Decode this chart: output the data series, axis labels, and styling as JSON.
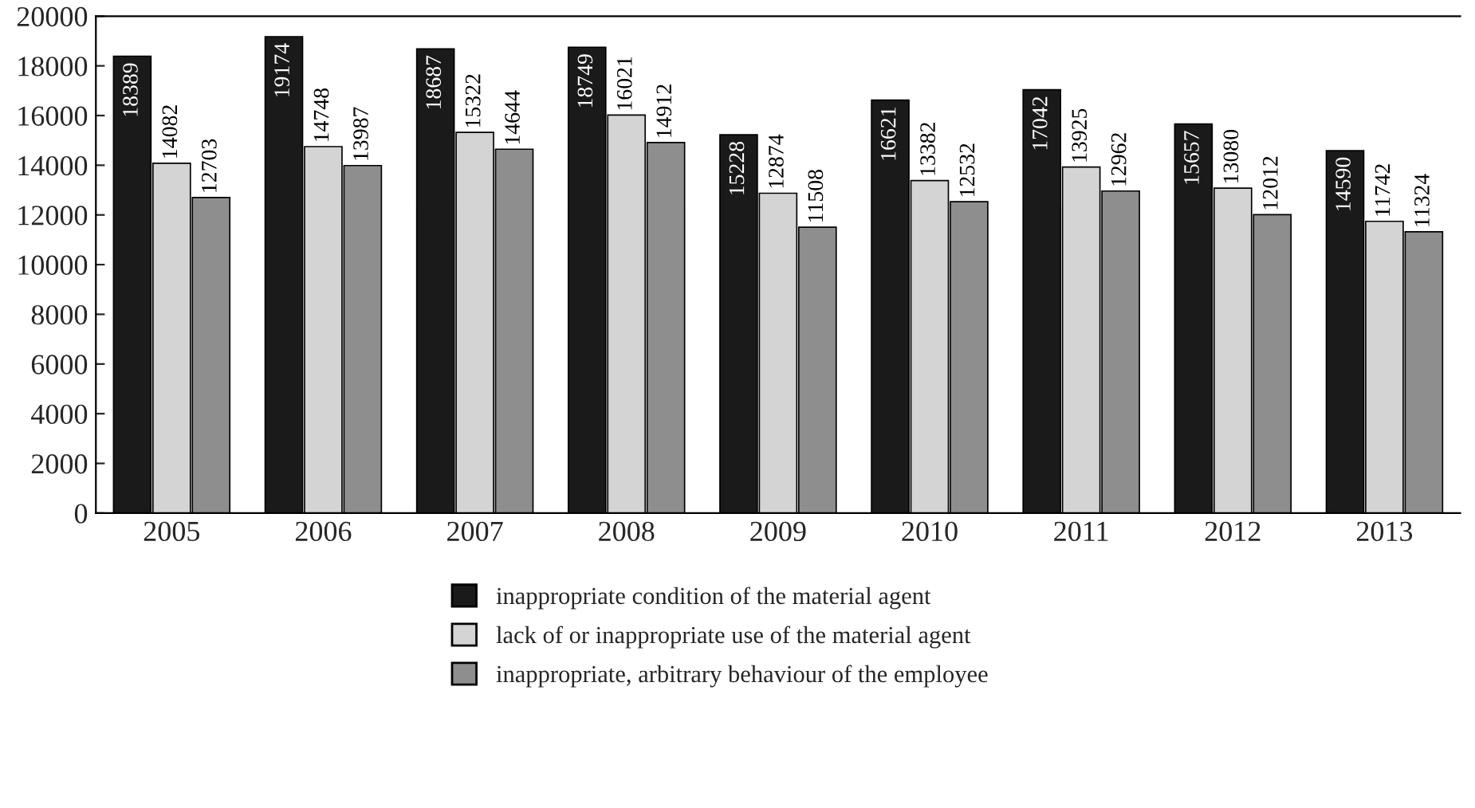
{
  "chart_data": {
    "type": "bar",
    "categories": [
      "2005",
      "2006",
      "2007",
      "2008",
      "2009",
      "2010",
      "2011",
      "2012",
      "2013"
    ],
    "series": [
      {
        "name": "inappropriate condition of the material agent",
        "color": "#1a1a1a",
        "values": [
          18389,
          19174,
          18687,
          18749,
          15228,
          16621,
          17042,
          15657,
          14590
        ]
      },
      {
        "name": "lack of or inappropriate use of the material agent",
        "color": "#d4d4d4",
        "values": [
          14082,
          14748,
          15322,
          16021,
          12874,
          13382,
          13925,
          13080,
          11742
        ]
      },
      {
        "name": "inappropriate, arbitrary behaviour of the employee",
        "color": "#8e8e8e",
        "values": [
          12703,
          13987,
          14644,
          14912,
          11508,
          12532,
          12962,
          12012,
          11324
        ]
      }
    ],
    "ylim": [
      0,
      20000
    ],
    "yticks": [
      0,
      2000,
      4000,
      6000,
      8000,
      10000,
      12000,
      14000,
      16000,
      18000,
      20000
    ],
    "data_labels": true,
    "legend": "bottom",
    "grid": false
  }
}
